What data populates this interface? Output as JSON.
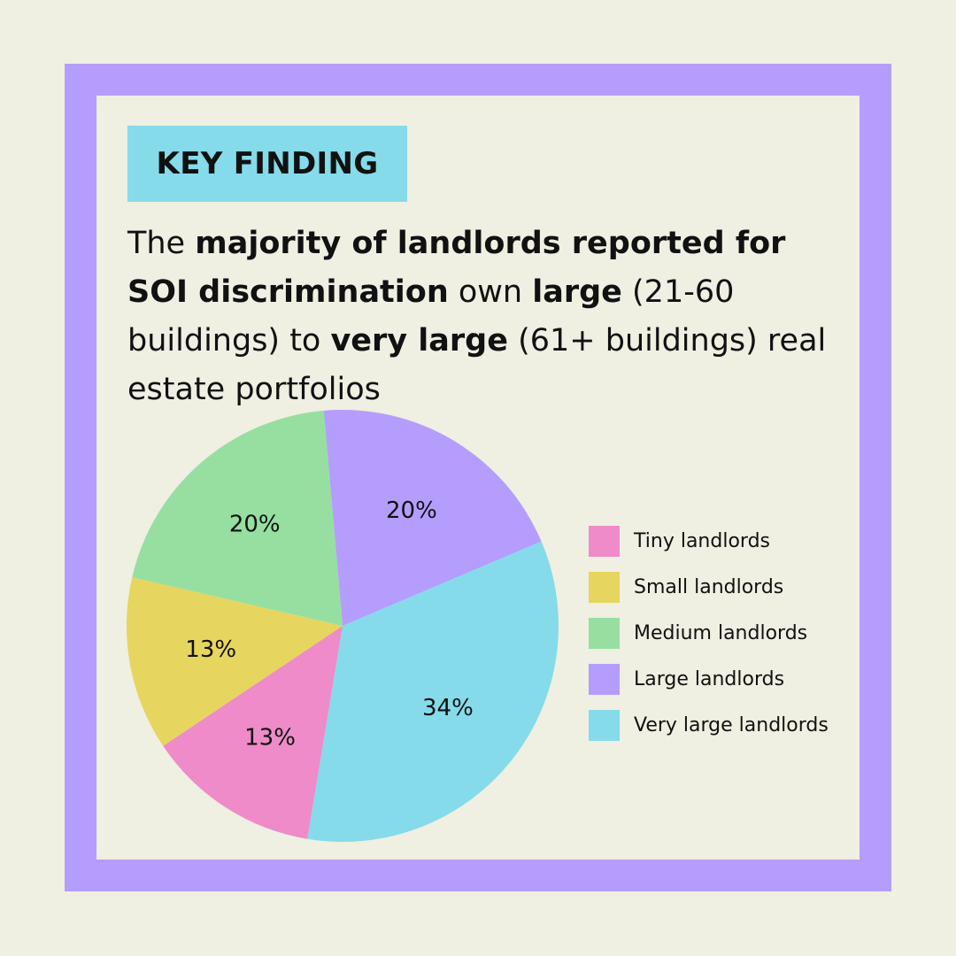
{
  "badge": {
    "label": "KEY FINDING"
  },
  "headline": {
    "p1": "The ",
    "b1": "majority of landlords reported for SOI discrimination",
    "p2": " own ",
    "b2": "large",
    "p3": " (21-60 buildings) to ",
    "b3": "very large",
    "p4": " (61+ buildings) real estate portfolios"
  },
  "chart_data": {
    "type": "pie",
    "slices": [
      {
        "name": "Large landlords",
        "value": 20,
        "label": "20%",
        "color": "#b49dfd"
      },
      {
        "name": "Very large landlords",
        "value": 34,
        "label": "34%",
        "color": "#85dbe9"
      },
      {
        "name": "Tiny landlords",
        "value": 13,
        "label": "13%",
        "color": "#ee8bc8"
      },
      {
        "name": "Small landlords",
        "value": 13,
        "label": "13%",
        "color": "#e6d55f"
      },
      {
        "name": "Medium landlords",
        "value": 20,
        "label": "20%",
        "color": "#96dfa1"
      }
    ],
    "legend": [
      {
        "label": "Tiny landlords",
        "color": "#ee8bc8"
      },
      {
        "label": "Small landlords",
        "color": "#e6d55f"
      },
      {
        "label": "Medium landlords",
        "color": "#96dfa1"
      },
      {
        "label": "Large landlords",
        "color": "#b49dfd"
      },
      {
        "label": "Very large landlords",
        "color": "#85dbe9"
      }
    ],
    "legend_position": "right"
  }
}
